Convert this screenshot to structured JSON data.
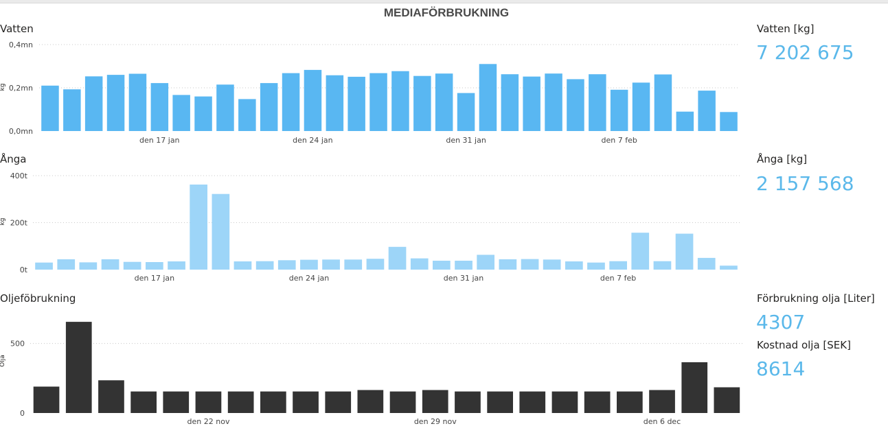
{
  "title": "MEDIAFÖRBRUKNING",
  "colors": {
    "water": "#59b7f2",
    "steam": "#9dd5f8",
    "oil": "#333333",
    "kpi": "#5ab8ea"
  },
  "kpis": [
    {
      "label": "Vatten [kg]",
      "value": "7 202 675"
    },
    {
      "label": "Ånga [kg]",
      "value": "2 157 568"
    },
    {
      "label": "Förbrukning olja [Liter]",
      "value": "4307"
    },
    {
      "label": "Kostnad olja [SEK]",
      "value": "8614"
    }
  ],
  "chart_data": [
    {
      "type": "bar",
      "title": "Vatten",
      "ylabel": "kg",
      "ylim": [
        0,
        400000
      ],
      "y_ticks": [
        {
          "value": 0,
          "label": "0,0mn"
        },
        {
          "value": 200000,
          "label": "0,2mn"
        },
        {
          "value": 400000,
          "label": "0,4mn"
        }
      ],
      "x_labels": [
        {
          "index": 5,
          "label": "den 17 jan"
        },
        {
          "index": 12,
          "label": "den 24 jan"
        },
        {
          "index": 19,
          "label": "den 31 jan"
        },
        {
          "index": 26,
          "label": "den 7 feb"
        }
      ],
      "grid": true,
      "values": [
        210000,
        193000,
        253000,
        260000,
        265000,
        222000,
        167000,
        160000,
        215000,
        148000,
        222000,
        268000,
        283000,
        258000,
        251000,
        268000,
        277000,
        255000,
        266000,
        176000,
        310000,
        263000,
        252000,
        266000,
        240000,
        263000,
        191000,
        224000,
        262000,
        90000,
        187000,
        88000
      ]
    },
    {
      "type": "bar",
      "title": "Ånga",
      "ylabel": "kg",
      "ylim": [
        0,
        400000
      ],
      "y_ticks": [
        {
          "value": 0,
          "label": "0t"
        },
        {
          "value": 200000,
          "label": "200t"
        },
        {
          "value": 400000,
          "label": "400t"
        }
      ],
      "x_labels": [
        {
          "index": 5,
          "label": "den 17 jan"
        },
        {
          "index": 12,
          "label": "den 24 jan"
        },
        {
          "index": 19,
          "label": "den 31 jan"
        },
        {
          "index": 26,
          "label": "den 7 feb"
        }
      ],
      "grid": true,
      "values": [
        30000,
        44000,
        31000,
        44000,
        33000,
        32000,
        35000,
        362000,
        322000,
        35000,
        36000,
        40000,
        42000,
        43000,
        43000,
        46000,
        97000,
        48000,
        38000,
        38000,
        63000,
        44000,
        45000,
        43000,
        35000,
        30000,
        36000,
        157000,
        36000,
        153000,
        50000,
        17000
      ]
    },
    {
      "type": "bar",
      "title": "Oljeföbrukning",
      "ylabel": "Olja",
      "ylim": [
        0,
        700
      ],
      "y_ticks": [
        {
          "value": 0,
          "label": "0"
        },
        {
          "value": 500,
          "label": "500"
        }
      ],
      "x_labels": [
        {
          "index": 5,
          "label": "den 22 nov"
        },
        {
          "index": 12,
          "label": "den 29 nov"
        },
        {
          "index": 19,
          "label": "den 6 dec"
        }
      ],
      "grid": true,
      "values": [
        190,
        655,
        235,
        155,
        155,
        155,
        155,
        155,
        155,
        155,
        165,
        155,
        165,
        155,
        155,
        155,
        155,
        155,
        155,
        165,
        365,
        185
      ]
    }
  ]
}
